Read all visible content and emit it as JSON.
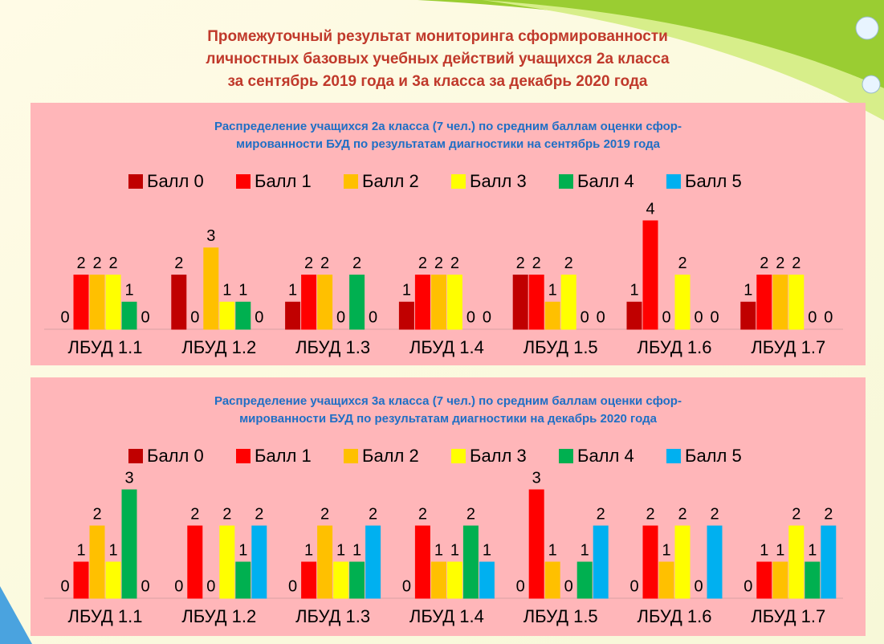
{
  "header": {
    "title": [
      "Промежуточный результат мониторинга сформированности",
      "личностных базовых учебных действий учащихся 2а класса",
      "за сентябрь 2019 года и 3а класса за декабрь 2020 года"
    ]
  },
  "chart_data": [
    {
      "type": "bar",
      "title": [
        "Распределение учащихся 2а класса (7 чел.) по средним баллам оценки сфор-",
        "мированности БУД по результатам диагностики на сентябрь 2019 года"
      ],
      "categories": [
        "ЛБУД 1.1",
        "ЛБУД 1.2",
        "ЛБУД 1.3",
        "ЛБУД 1.4",
        "ЛБУД 1.5",
        "ЛБУД 1.6",
        "ЛБУД 1.7"
      ],
      "series": [
        {
          "name": "Балл 0",
          "color": "#c00000",
          "values": [
            0,
            2,
            1,
            1,
            2,
            1,
            1
          ]
        },
        {
          "name": "Балл 1",
          "color": "#ff0000",
          "values": [
            2,
            0,
            2,
            2,
            2,
            4,
            2
          ]
        },
        {
          "name": "Балл 2",
          "color": "#ffc000",
          "values": [
            2,
            3,
            2,
            2,
            1,
            0,
            2
          ]
        },
        {
          "name": "Балл 3",
          "color": "#ffff00",
          "values": [
            2,
            1,
            0,
            2,
            2,
            2,
            2
          ]
        },
        {
          "name": "Балл 4",
          "color": "#00b050",
          "values": [
            1,
            1,
            2,
            0,
            0,
            0,
            0
          ]
        },
        {
          "name": "Балл 5",
          "color": "#00b0f0",
          "values": [
            0,
            0,
            0,
            0,
            0,
            0,
            0
          ]
        }
      ]
    },
    {
      "type": "bar",
      "title": [
        "Распределение учащихся 3а класса (7 чел.) по средним баллам оценки сфор-",
        "мированности БУД по результатам диагностики на декабрь 2020 года"
      ],
      "categories": [
        "ЛБУД 1.1",
        "ЛБУД 1.2",
        "ЛБУД 1.3",
        "ЛБУД 1.4",
        "ЛБУД 1.5",
        "ЛБУД 1.6",
        "ЛБУД 1.7"
      ],
      "series": [
        {
          "name": "Балл 0",
          "color": "#c00000",
          "values": [
            0,
            0,
            0,
            0,
            0,
            0,
            0
          ]
        },
        {
          "name": "Балл 1",
          "color": "#ff0000",
          "values": [
            1,
            2,
            1,
            2,
            3,
            2,
            1
          ]
        },
        {
          "name": "Балл 2",
          "color": "#ffc000",
          "values": [
            2,
            0,
            2,
            1,
            1,
            1,
            1
          ]
        },
        {
          "name": "Балл 3",
          "color": "#ffff00",
          "values": [
            1,
            2,
            1,
            1,
            0,
            2,
            2
          ]
        },
        {
          "name": "Балл 4",
          "color": "#00b050",
          "values": [
            3,
            1,
            1,
            2,
            1,
            0,
            1
          ]
        },
        {
          "name": "Балл 5",
          "color": "#00b0f0",
          "values": [
            0,
            2,
            2,
            1,
            2,
            2,
            2
          ]
        }
      ]
    }
  ]
}
